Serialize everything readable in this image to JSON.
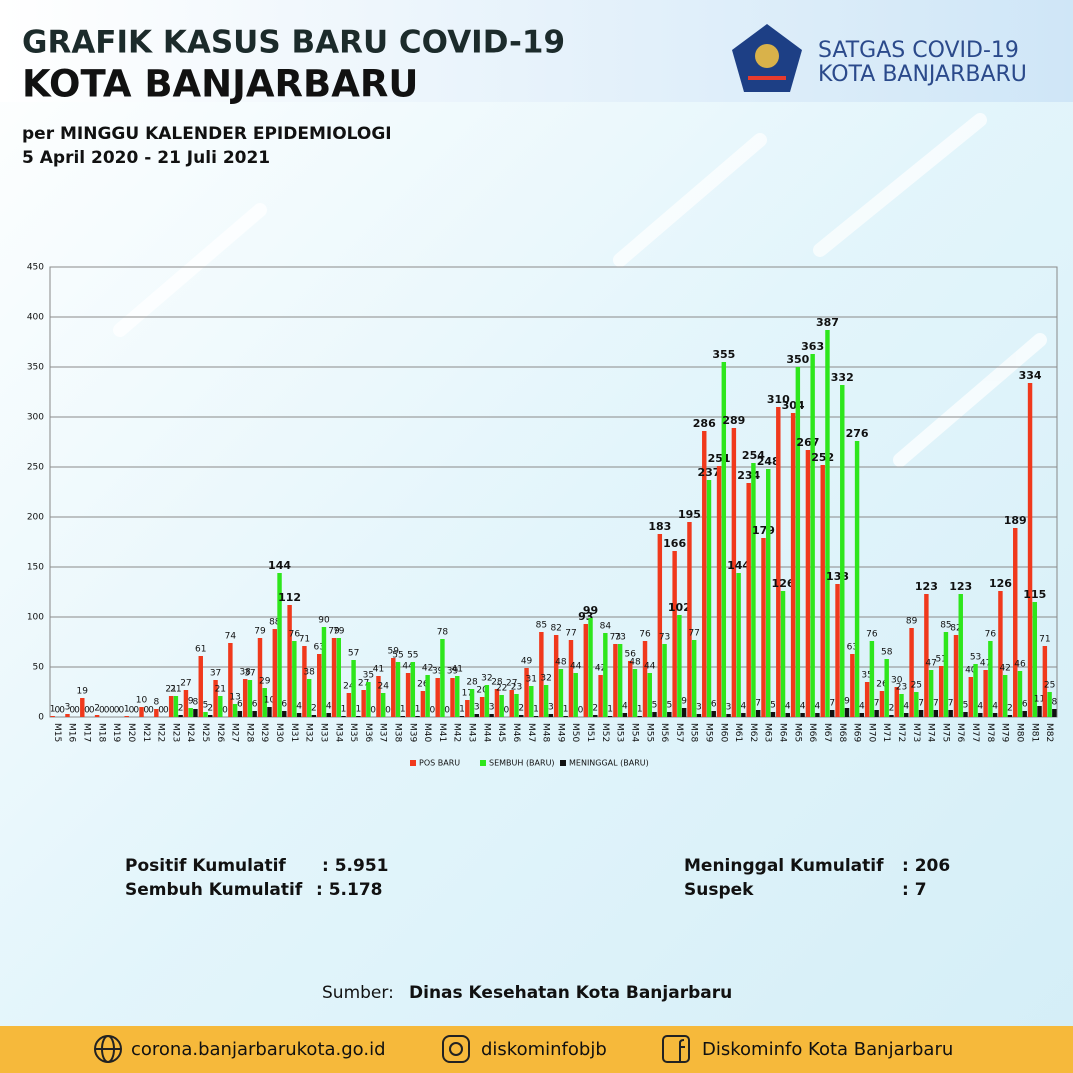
{
  "header": {
    "title_line1": "GRAFIK KASUS BARU COVID-19",
    "title_line2": "KOTA BANJARBARU",
    "subtitle_line1": "per MINGGU KALENDER EPIDEMIOLOGI",
    "subtitle_line2": "5 April 2020 - 21 Juli 2021"
  },
  "logo": {
    "name_line1": "SATGAS COVID-19",
    "name_line2": "KOTA BANJARBARU"
  },
  "chart_data": {
    "type": "bar",
    "categories": [
      "M15",
      "M16",
      "M17",
      "M18",
      "M19",
      "M20",
      "M21",
      "M22",
      "M23",
      "M24",
      "M25",
      "M26",
      "M27",
      "M28",
      "M29",
      "M30",
      "M31",
      "M32",
      "M33",
      "M34",
      "M35",
      "M36",
      "M37",
      "M38",
      "M39",
      "M40",
      "M41",
      "M42",
      "M43",
      "M44",
      "M45",
      "M46",
      "M47",
      "M48",
      "M49",
      "M50",
      "M51",
      "M52",
      "M53",
      "M54",
      "M55",
      "M56",
      "M57",
      "M58",
      "M59",
      "M60",
      "M61",
      "M62",
      "M63",
      "M64",
      "M65",
      "M66",
      "M67",
      "M68",
      "M69",
      "M70",
      "M71",
      "M72",
      "M73",
      "M74",
      "M75",
      "M76",
      "M77",
      "M78",
      "M79",
      "M80",
      "M81",
      "M82"
    ],
    "series": [
      {
        "name": "POS BARU",
        "color": "#f0391c",
        "values": [
          1,
          3,
          19,
          2,
          0,
          1,
          10,
          8,
          21,
          27,
          61,
          37,
          74,
          38,
          79,
          88,
          112,
          71,
          63,
          79,
          24,
          27,
          41,
          59,
          44,
          26,
          39,
          39,
          17,
          20,
          28,
          27,
          49,
          85,
          82,
          77,
          93,
          42,
          73,
          56,
          76,
          183,
          166,
          195,
          286,
          251,
          289,
          234,
          179,
          310,
          304,
          267,
          252,
          133,
          63,
          35,
          26,
          30,
          89,
          123,
          51,
          82,
          40,
          47,
          126,
          189,
          334,
          71
        ]
      },
      {
        "name": "SEMBUH (BARU)",
        "color": "#2ee61c",
        "values": [
          0,
          0,
          0,
          0,
          0,
          0,
          0,
          0,
          21,
          9,
          5,
          21,
          13,
          37,
          29,
          144,
          76,
          38,
          90,
          79,
          57,
          35,
          24,
          55,
          55,
          42,
          78,
          41,
          28,
          32,
          22,
          23,
          31,
          32,
          48,
          44,
          99,
          84,
          73,
          48,
          44,
          73,
          102,
          77,
          237,
          355,
          144,
          254,
          248,
          126,
          350,
          363,
          387,
          332,
          276,
          76,
          58,
          23,
          25,
          47,
          85,
          123,
          53,
          76,
          42,
          46,
          115,
          25
        ]
      },
      {
        "name": "MENINGGAL (BARU)",
        "color": "#111111",
        "values": [
          0,
          0,
          0,
          0,
          0,
          0,
          0,
          0,
          2,
          8,
          2,
          0,
          6,
          6,
          10,
          6,
          4,
          2,
          4,
          1,
          1,
          0,
          0,
          1,
          1,
          0,
          0,
          1,
          3,
          3,
          0,
          2,
          1,
          3,
          1,
          0,
          2,
          1,
          4,
          1,
          5,
          5,
          9,
          3,
          6,
          3,
          4,
          7,
          5,
          4,
          4,
          4,
          7,
          9,
          4,
          7,
          2,
          4,
          7,
          7,
          7,
          5,
          4,
          4,
          2,
          6,
          11,
          8
        ]
      }
    ],
    "ylim": [
      0,
      450
    ],
    "yticks": [
      0,
      50,
      100,
      150,
      200,
      250,
      300,
      350,
      400,
      450
    ],
    "grid": true,
    "legend": "bottom"
  },
  "stats": [
    {
      "label": "Positif Kumulatif",
      "value": ": 5.951"
    },
    {
      "label": "Sembuh Kumulatif",
      "value": ": 5.178"
    },
    {
      "label": "Meninggal Kumulatif",
      "value": ": 206"
    },
    {
      "label": "Suspek",
      "value": ": 7"
    }
  ],
  "source": {
    "prefix": "Sumber:",
    "name": "Dinas Kesehatan Kota Banjarbaru"
  },
  "footer": {
    "website": "corona.banjarbarukota.go.id",
    "instagram": "diskominfobjb",
    "facebook": "Diskominfo Kota Banjarbaru"
  }
}
